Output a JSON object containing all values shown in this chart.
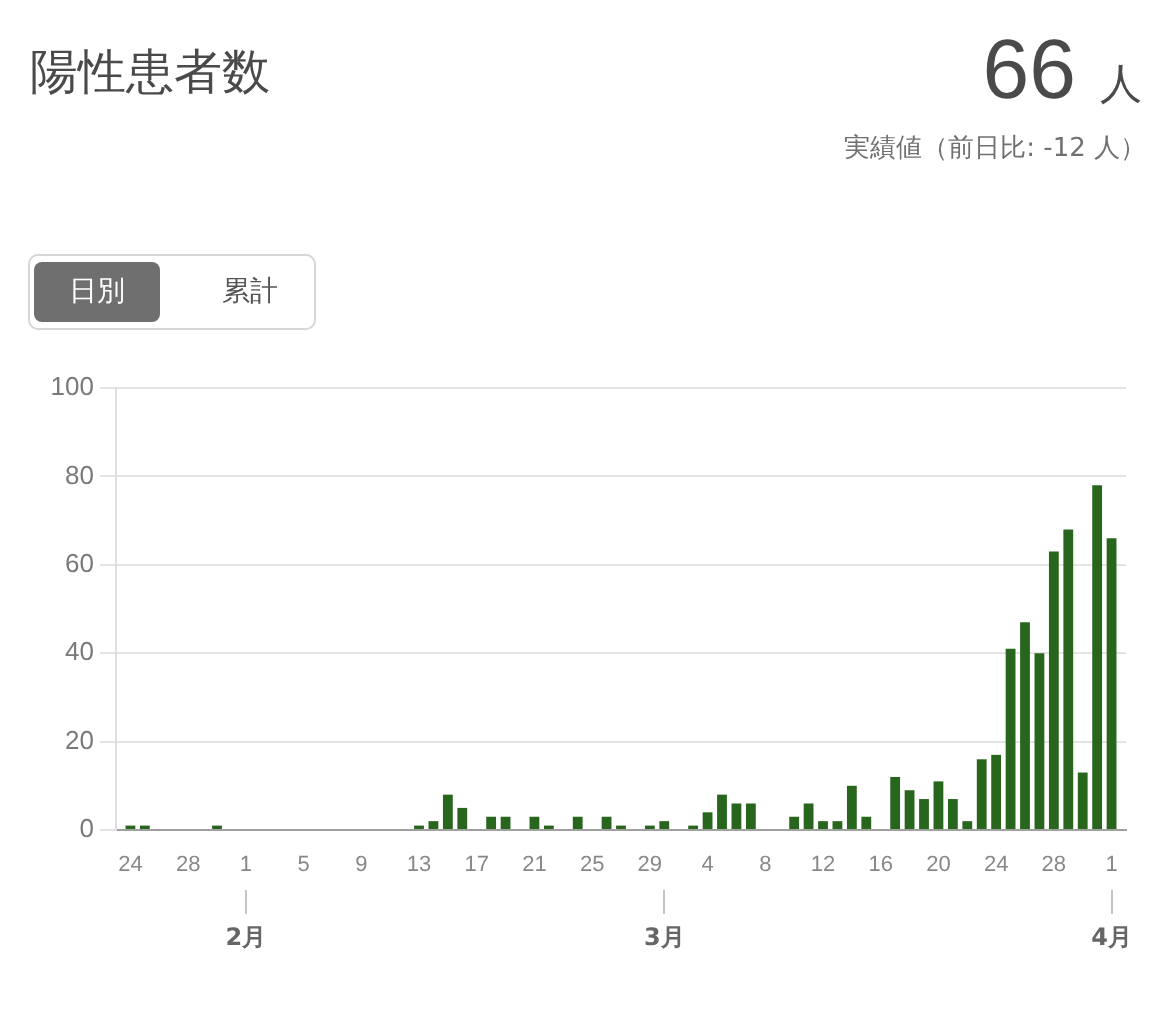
{
  "chart_data": {
    "type": "bar",
    "title": "陽性患者数",
    "annotations": [
      "66",
      "人",
      "実績値（前日比: -12 人）",
      "日別",
      "累計"
    ],
    "x": [
      "--01-24",
      "--01-25",
      "--01-26",
      "--01-27",
      "--01-28",
      "--01-29",
      "--01-30",
      "--01-31",
      "--02-01",
      "--02-02",
      "--02-03",
      "--02-04",
      "--02-05",
      "--02-06",
      "--02-07",
      "--02-08",
      "--02-09",
      "--02-10",
      "--02-11",
      "--02-12",
      "--02-13",
      "--02-14",
      "--02-15",
      "--02-16",
      "--02-17",
      "--02-18",
      "--02-19",
      "--02-20",
      "--02-21",
      "--02-22",
      "--02-23",
      "--02-24",
      "--02-25",
      "--02-26",
      "--02-27",
      "--02-28",
      "--02-29",
      "--03-01",
      "--03-02",
      "--03-03",
      "--03-04",
      "--03-05",
      "--03-06",
      "--03-07",
      "--03-08",
      "--03-09",
      "--03-10",
      "--03-11",
      "--03-12",
      "--03-13",
      "--03-14",
      "--03-15",
      "--03-16",
      "--03-17",
      "--03-18",
      "--03-19",
      "--03-20",
      "--03-21",
      "--03-22",
      "--03-23",
      "--03-24",
      "--03-25",
      "--03-26",
      "--03-27",
      "--03-28",
      "--03-29",
      "--03-30",
      "--03-31",
      "--04-01"
    ],
    "values": [
      1,
      1,
      0,
      0,
      0,
      0,
      1,
      0,
      0,
      0,
      0,
      0,
      0,
      0,
      0,
      0,
      0,
      0,
      0,
      0,
      1,
      2,
      8,
      5,
      0,
      3,
      3,
      0,
      3,
      1,
      0,
      3,
      0,
      3,
      1,
      0,
      1,
      2,
      0,
      1,
      4,
      8,
      6,
      6,
      0,
      0,
      3,
      6,
      2,
      2,
      10,
      3,
      0,
      12,
      9,
      7,
      11,
      7,
      2,
      16,
      17,
      41,
      47,
      40,
      63,
      68,
      13,
      78,
      66
    ],
    "color": "#27661c",
    "xlim": [
      "--01-23",
      "--04-02"
    ],
    "xticks": [
      {
        "value": "--01-24",
        "label": "24"
      },
      {
        "value": "--01-28",
        "label": "28"
      },
      {
        "value": "--02-01",
        "label": "1"
      },
      {
        "value": "--02-05",
        "label": "5"
      },
      {
        "value": "--02-09",
        "label": "9"
      },
      {
        "value": "--02-13",
        "label": "13"
      },
      {
        "value": "--02-17",
        "label": "17"
      },
      {
        "value": "--02-21",
        "label": "21"
      },
      {
        "value": "--02-25",
        "label": "25"
      },
      {
        "value": "--02-29",
        "label": "29"
      },
      {
        "value": "--03-04",
        "label": "4"
      },
      {
        "value": "--03-08",
        "label": "8"
      },
      {
        "value": "--03-12",
        "label": "12"
      },
      {
        "value": "--03-16",
        "label": "16"
      },
      {
        "value": "--03-20",
        "label": "20"
      },
      {
        "value": "--03-24",
        "label": "24"
      },
      {
        "value": "--03-28",
        "label": "28"
      },
      {
        "value": "--04-01",
        "label": "1"
      }
    ],
    "x2lim": [
      "--01-23",
      "--04-02"
    ],
    "x2ticks": [
      {
        "value": "--02-01",
        "label": "2月"
      },
      {
        "value": "--03-01",
        "label": "3月"
      },
      {
        "value": "--04-01",
        "label": "4月"
      }
    ],
    "ylim": [
      0,
      100
    ],
    "yticks": [
      0,
      20,
      40,
      60,
      80,
      100
    ],
    "grid": "y",
    "legend": false
  }
}
